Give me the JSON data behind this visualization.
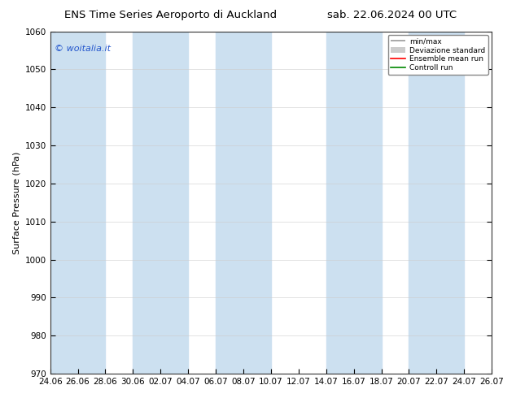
{
  "title_left": "ENS Time Series Aeroporto di Auckland",
  "title_right": "sab. 22.06.2024 00 UTC",
  "ylabel": "Surface Pressure (hPa)",
  "ylim": [
    970,
    1060
  ],
  "yticks": [
    970,
    980,
    990,
    1000,
    1010,
    1020,
    1030,
    1040,
    1050,
    1060
  ],
  "x_tick_labels": [
    "24.06",
    "26.06",
    "28.06",
    "30.06",
    "02.07",
    "04.07",
    "06.07",
    "08.07",
    "10.07",
    "12.07",
    "14.07",
    "16.07",
    "18.07",
    "20.07",
    "22.07",
    "24.07",
    "26.07"
  ],
  "watermark": "© woitalia.it",
  "legend_entries": [
    "min/max",
    "Deviazione standard",
    "Ensemble mean run",
    "Controll run"
  ],
  "bg_color": "#ffffff",
  "band_color": "#cce0f0",
  "band_alpha": 1.0,
  "title_fontsize": 9.5,
  "axis_fontsize": 8,
  "tick_fontsize": 7.5,
  "watermark_color": "#2255cc",
  "ensemble_mean_color": "#ff0000",
  "controll_run_color": "#008800",
  "minmax_color": "#999999",
  "devstd_color": "#cccccc",
  "band_positions": [
    0,
    3,
    6,
    10,
    13
  ]
}
